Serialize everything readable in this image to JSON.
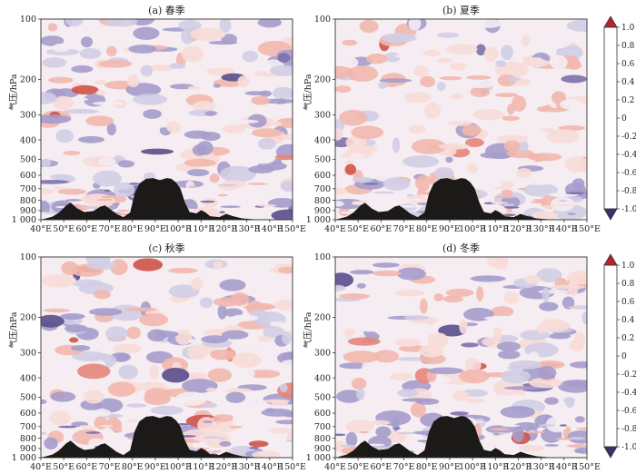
{
  "figure": {
    "ylabel": "气压/hPa",
    "x_ticks": [
      "40°E",
      "50°E",
      "60°E",
      "70°E",
      "80°E",
      "90°E",
      "100°E",
      "110°E",
      "120°E",
      "130°E",
      "140°E",
      "150°E"
    ],
    "y_ticks": [
      "100",
      "200",
      "300",
      "400",
      "500",
      "600",
      "700",
      "800",
      "900",
      "1 000"
    ],
    "colors": {
      "terrain": "#1c1a18",
      "frame": "#333333"
    }
  },
  "colorbar": {
    "ticks": [
      "1.0",
      "0.8",
      "0.6",
      "0.4",
      "0.2",
      "0",
      "-0.2",
      "-0.4",
      "-0.6",
      "-0.8",
      "-1.0"
    ],
    "levels": [
      -1.0,
      -0.8,
      -0.6,
      -0.4,
      -0.2,
      0,
      0.2,
      0.4,
      0.6,
      0.8,
      1.0
    ],
    "colors": [
      "#3c2f6b",
      "#5a4c8c",
      "#7d70ad",
      "#a59ccb",
      "#d2cde4",
      "#f4ecf2",
      "#f8dcd8",
      "#f2b7ad",
      "#e5857a",
      "#cf5247",
      "#b2262b"
    ]
  },
  "chart_data": [
    {
      "type": "heatmap",
      "title": "(a) 春季",
      "x_range": [
        "40°E",
        "150°E"
      ],
      "y_range": [
        "1 000",
        "100"
      ],
      "terrain_profile": [
        [
          40,
          1000
        ],
        [
          45,
          965
        ],
        [
          48,
          920
        ],
        [
          51,
          850
        ],
        [
          53,
          822
        ],
        [
          56,
          880
        ],
        [
          59,
          915
        ],
        [
          63,
          905
        ],
        [
          66,
          860
        ],
        [
          68,
          848
        ],
        [
          70,
          880
        ],
        [
          73,
          935
        ],
        [
          76,
          970
        ],
        [
          79,
          920
        ],
        [
          81,
          740
        ],
        [
          83,
          660
        ],
        [
          86,
          625
        ],
        [
          89,
          620
        ],
        [
          92,
          635
        ],
        [
          95,
          620
        ],
        [
          97,
          625
        ],
        [
          99,
          650
        ],
        [
          101,
          700
        ],
        [
          103,
          820
        ],
        [
          105,
          915
        ],
        [
          108,
          930
        ],
        [
          110,
          895
        ],
        [
          112,
          920
        ],
        [
          114,
          960
        ],
        [
          118,
          970
        ],
        [
          121,
          935
        ],
        [
          124,
          960
        ],
        [
          128,
          985
        ],
        [
          133,
          995
        ],
        [
          150,
          1000
        ]
      ]
    },
    {
      "type": "heatmap",
      "title": "(b) 夏季",
      "x_range": [
        "40°E",
        "150°E"
      ],
      "y_range": [
        "1 000",
        "100"
      ],
      "terrain_profile": [
        [
          40,
          1000
        ],
        [
          45,
          965
        ],
        [
          48,
          920
        ],
        [
          51,
          850
        ],
        [
          53,
          822
        ],
        [
          56,
          880
        ],
        [
          59,
          915
        ],
        [
          63,
          905
        ],
        [
          66,
          860
        ],
        [
          68,
          848
        ],
        [
          70,
          880
        ],
        [
          73,
          935
        ],
        [
          76,
          970
        ],
        [
          79,
          920
        ],
        [
          81,
          740
        ],
        [
          83,
          660
        ],
        [
          86,
          625
        ],
        [
          89,
          620
        ],
        [
          92,
          635
        ],
        [
          95,
          620
        ],
        [
          97,
          625
        ],
        [
          99,
          650
        ],
        [
          101,
          700
        ],
        [
          103,
          820
        ],
        [
          105,
          915
        ],
        [
          108,
          930
        ],
        [
          110,
          895
        ],
        [
          112,
          920
        ],
        [
          114,
          960
        ],
        [
          118,
          970
        ],
        [
          121,
          935
        ],
        [
          124,
          960
        ],
        [
          128,
          985
        ],
        [
          133,
          995
        ],
        [
          150,
          1000
        ]
      ]
    },
    {
      "type": "heatmap",
      "title": "(c) 秋季",
      "x_range": [
        "40°E",
        "150°E"
      ],
      "y_range": [
        "1 000",
        "100"
      ],
      "terrain_profile": [
        [
          40,
          1000
        ],
        [
          45,
          965
        ],
        [
          48,
          920
        ],
        [
          51,
          850
        ],
        [
          53,
          822
        ],
        [
          56,
          880
        ],
        [
          59,
          915
        ],
        [
          63,
          905
        ],
        [
          66,
          860
        ],
        [
          68,
          848
        ],
        [
          70,
          880
        ],
        [
          73,
          935
        ],
        [
          76,
          970
        ],
        [
          79,
          920
        ],
        [
          81,
          740
        ],
        [
          83,
          660
        ],
        [
          86,
          625
        ],
        [
          89,
          620
        ],
        [
          92,
          635
        ],
        [
          95,
          620
        ],
        [
          97,
          625
        ],
        [
          99,
          650
        ],
        [
          101,
          700
        ],
        [
          103,
          820
        ],
        [
          105,
          915
        ],
        [
          108,
          930
        ],
        [
          110,
          895
        ],
        [
          112,
          920
        ],
        [
          114,
          960
        ],
        [
          118,
          970
        ],
        [
          121,
          935
        ],
        [
          124,
          960
        ],
        [
          128,
          985
        ],
        [
          133,
          995
        ],
        [
          150,
          1000
        ]
      ]
    },
    {
      "type": "heatmap",
      "title": "(d) 冬季",
      "x_range": [
        "40°E",
        "150°E"
      ],
      "y_range": [
        "1 000",
        "100"
      ],
      "terrain_profile": [
        [
          40,
          1000
        ],
        [
          45,
          965
        ],
        [
          48,
          920
        ],
        [
          51,
          850
        ],
        [
          53,
          822
        ],
        [
          56,
          880
        ],
        [
          59,
          915
        ],
        [
          63,
          905
        ],
        [
          66,
          860
        ],
        [
          68,
          848
        ],
        [
          70,
          880
        ],
        [
          73,
          935
        ],
        [
          76,
          970
        ],
        [
          79,
          920
        ],
        [
          81,
          740
        ],
        [
          83,
          660
        ],
        [
          86,
          625
        ],
        [
          89,
          620
        ],
        [
          92,
          635
        ],
        [
          95,
          620
        ],
        [
          97,
          625
        ],
        [
          99,
          650
        ],
        [
          101,
          700
        ],
        [
          103,
          820
        ],
        [
          105,
          915
        ],
        [
          108,
          930
        ],
        [
          110,
          895
        ],
        [
          112,
          920
        ],
        [
          114,
          960
        ],
        [
          118,
          970
        ],
        [
          121,
          935
        ],
        [
          124,
          960
        ],
        [
          128,
          985
        ],
        [
          133,
          995
        ],
        [
          150,
          1000
        ]
      ]
    }
  ]
}
